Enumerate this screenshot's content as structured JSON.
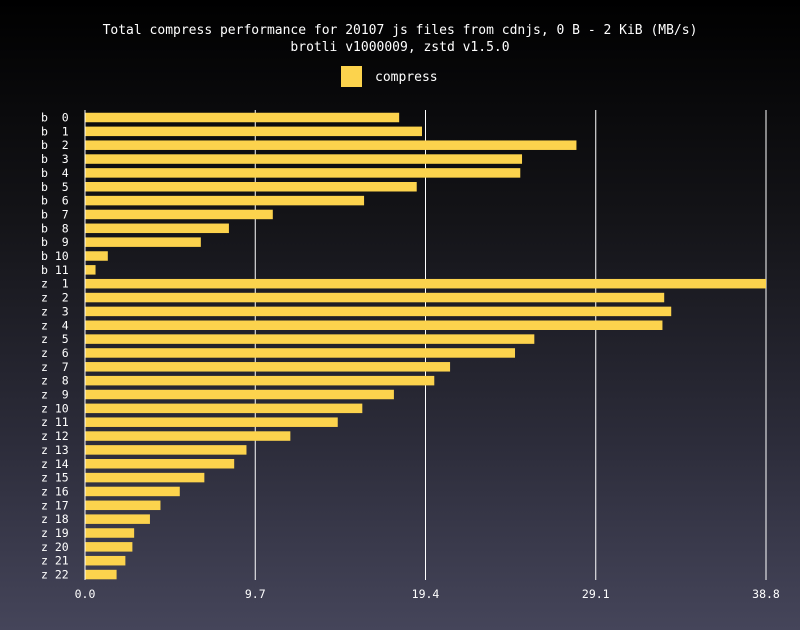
{
  "chart_data": {
    "type": "bar",
    "orientation": "horizontal",
    "title": "Total compress performance for 20107 js files from cdnjs, 0 B - 2 KiB (MB/s)",
    "subtitle": "brotli v1000009, zstd v1.5.0",
    "xlim": [
      0,
      38.8
    ],
    "xticks": [
      "0.0",
      "9.7",
      "19.4",
      "29.1",
      "38.8"
    ],
    "grid": "vertical",
    "legend": "top-center",
    "bar_color": "#fcd34d",
    "categories": [
      "b  0",
      "b  1",
      "b  2",
      "b  3",
      "b  4",
      "b  5",
      "b  6",
      "b  7",
      "b  8",
      "b  9",
      "b 10",
      "b 11",
      "z  1",
      "z  2",
      "z  3",
      "z  4",
      "z  5",
      "z  6",
      "z  7",
      "z  8",
      "z  9",
      "z 10",
      "z 11",
      "z 12",
      "z 13",
      "z 14",
      "z 15",
      "z 16",
      "z 17",
      "z 18",
      "z 19",
      "z 20",
      "z 21",
      "z 22"
    ],
    "series": [
      {
        "name": "compress",
        "values": [
          17.9,
          19.2,
          28.0,
          24.9,
          24.8,
          18.9,
          15.9,
          10.7,
          8.2,
          6.6,
          1.3,
          0.6,
          38.8,
          33.0,
          33.4,
          32.9,
          25.6,
          24.5,
          20.8,
          19.9,
          17.6,
          15.8,
          14.4,
          11.7,
          9.2,
          8.5,
          6.8,
          5.4,
          4.3,
          3.7,
          2.8,
          2.7,
          2.3,
          1.8
        ]
      }
    ]
  }
}
